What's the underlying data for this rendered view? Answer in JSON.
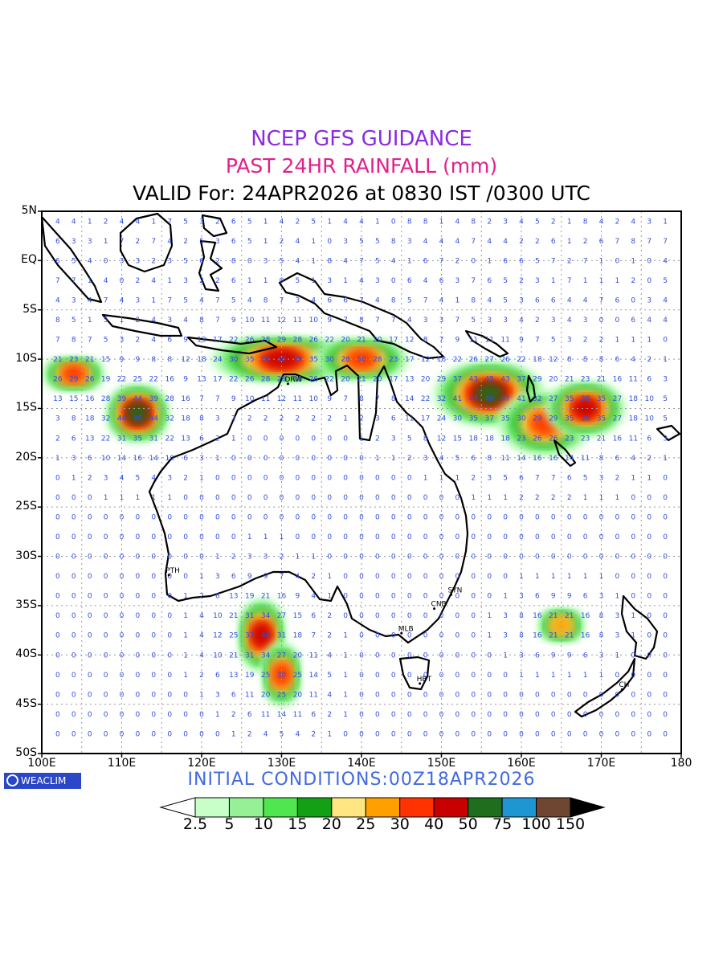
{
  "titles": {
    "line1": "NCEP GFS GUIDANCE",
    "line2": "PAST 24HR RAINFALL (mm)",
    "line3": "VALID For: 24APR2026 at 0830 IST /0300 UTC"
  },
  "initial_conditions": "INITIAL CONDITIONS:00Z18APR2026",
  "logo_text": "WEACLIM",
  "map": {
    "lat_labels": [
      "5N",
      "EQ",
      "5S",
      "10S",
      "15S",
      "20S",
      "25S",
      "30S",
      "35S",
      "40S",
      "45S",
      "50S"
    ],
    "lon_labels": [
      "100E",
      "110E",
      "120E",
      "130E",
      "140E",
      "150E",
      "160E",
      "170E",
      "180"
    ],
    "cities": [
      {
        "name": "PTH",
        "lon": 115.9,
        "lat": -31.9
      },
      {
        "name": "SYN",
        "lon": 151.2,
        "lat": -33.9
      },
      {
        "name": "CNB",
        "lon": 149.1,
        "lat": -35.3
      },
      {
        "name": "MLB",
        "lon": 145.0,
        "lat": -37.8
      },
      {
        "name": "HBT",
        "lon": 147.3,
        "lat": -42.9
      },
      {
        "name": "CH",
        "lon": 172.6,
        "lat": -43.5
      },
      {
        "name": "DRW",
        "lon": 130.8,
        "lat": -12.5
      }
    ],
    "rain_regions": [
      {
        "lon": 130,
        "lat": -10,
        "rx": 8,
        "ry": 1.6,
        "level": 40
      },
      {
        "lon": 140,
        "lat": -10,
        "rx": 5,
        "ry": 1.4,
        "level": 30
      },
      {
        "lon": 156,
        "lat": -13.5,
        "rx": 6,
        "ry": 2.5,
        "level": 50
      },
      {
        "lon": 163,
        "lat": -16.5,
        "rx": 5,
        "ry": 2.5,
        "level": 30
      },
      {
        "lon": 168,
        "lat": -15,
        "rx": 4,
        "ry": 2.0,
        "level": 40
      },
      {
        "lon": 112,
        "lat": -15.5,
        "rx": 3,
        "ry": 2.2,
        "level": 50
      },
      {
        "lon": 104,
        "lat": -11.5,
        "rx": 3,
        "ry": 1,
        "level": 30
      },
      {
        "lon": 127.5,
        "lat": -38,
        "rx": 2,
        "ry": 3,
        "level": 40
      },
      {
        "lon": 130,
        "lat": -42,
        "rx": 1.5,
        "ry": 2.5,
        "level": 30
      },
      {
        "lon": 165,
        "lat": -37,
        "rx": 2,
        "ry": 1,
        "level": 25
      }
    ]
  },
  "legend": {
    "levels": [
      "2.5",
      "5",
      "10",
      "15",
      "20",
      "25",
      "30",
      "40",
      "50",
      "75",
      "100",
      "150"
    ],
    "colors": [
      "#c8ffc8",
      "#96f096",
      "#50e650",
      "#14a014",
      "#ffe682",
      "#ffa000",
      "#ff3200",
      "#c80000",
      "#1e6e1e",
      "#1e96d2",
      "#6e4632"
    ]
  },
  "colors": {
    "title1": "#8a2be2",
    "title2": "#e0218a",
    "grid_numbers": "#3050e0",
    "initial_conditions": "#4169e1"
  }
}
